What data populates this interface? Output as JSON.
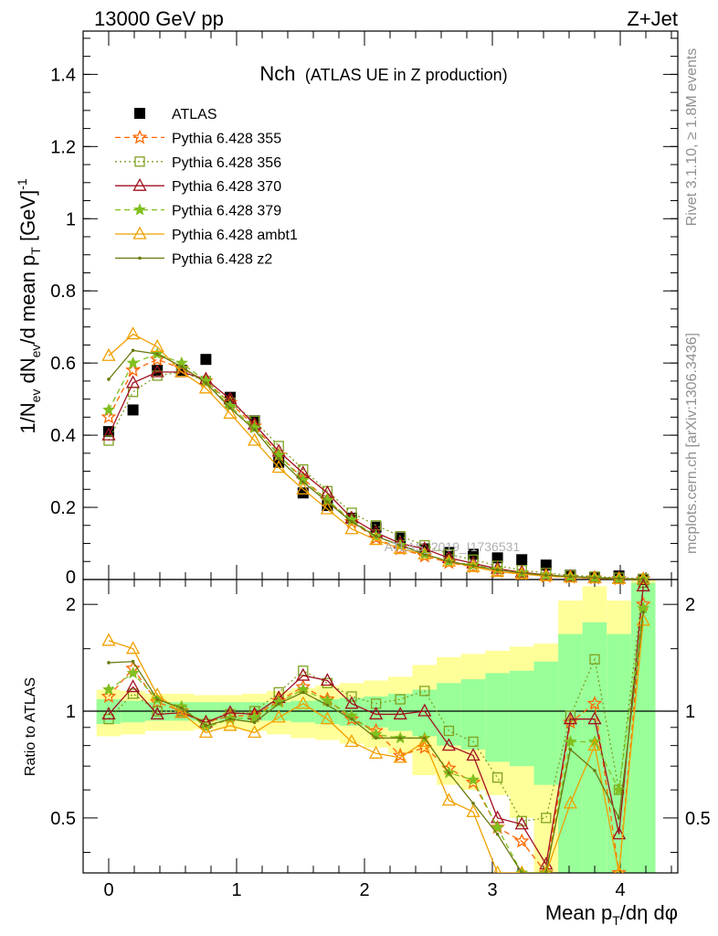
{
  "header": {
    "energy": "13000 GeV pp",
    "process": "Z+Jet",
    "rivet": "Rivet 3.1.10, ≥ 1.8M events",
    "site": "mcplots.cern.ch [arXiv:1306.3436]",
    "watermark": "ATLAS_2019_I1736531"
  },
  "chart_data": [
    {
      "type": "scatter",
      "title": "Nch",
      "subtitle": "(ATLAS UE in Z production)",
      "xlabel": "Mean p_T/dη dφ",
      "ylabel": "1/N_ev dN_ev/d mean p_T [GeV]^-1",
      "xlim": [
        -0.2,
        4.45
      ],
      "ylim": [
        0,
        1.52
      ],
      "yticks": [
        0.2,
        0.4,
        0.6,
        0.8,
        1,
        1.2,
        1.4
      ],
      "ytick_labels": [
        "0.2",
        "0.4",
        "0.6",
        "0.8",
        "1",
        "1.2",
        "1.4"
      ],
      "x": [
        0.0,
        0.19,
        0.38,
        0.57,
        0.76,
        0.95,
        1.14,
        1.33,
        1.52,
        1.71,
        1.9,
        2.09,
        2.28,
        2.47,
        2.66,
        2.85,
        3.04,
        3.23,
        3.42,
        3.61,
        3.8,
        3.99,
        4.18
      ],
      "series": [
        {
          "name": "ATLAS",
          "color": "#000000",
          "marker": "square-filled",
          "line": "none",
          "values": [
            0.41,
            0.47,
            0.58,
            0.58,
            0.61,
            0.505,
            0.44,
            0.325,
            0.24,
            0.205,
            0.17,
            0.145,
            0.115,
            0.085,
            0.075,
            0.07,
            0.06,
            0.055,
            0.04,
            0.012,
            0.006,
            0.01,
            0.0
          ]
        },
        {
          "name": "Pythia 6.428 355",
          "color": "#ff6600",
          "marker": "star-open",
          "line": "dashed",
          "values": [
            0.45,
            0.58,
            0.61,
            0.585,
            0.55,
            0.49,
            0.425,
            0.345,
            0.28,
            0.22,
            0.16,
            0.115,
            0.085,
            0.065,
            0.047,
            0.035,
            0.022,
            0.016,
            0.009,
            0.006,
            0.004,
            0.002,
            0.001
          ]
        },
        {
          "name": "Pythia 6.428 356",
          "color": "#7fa020",
          "marker": "square-open",
          "line": "dotted",
          "values": [
            0.385,
            0.52,
            0.565,
            0.575,
            0.55,
            0.49,
            0.44,
            0.37,
            0.305,
            0.245,
            0.185,
            0.15,
            0.12,
            0.095,
            0.07,
            0.055,
            0.038,
            0.026,
            0.018,
            0.012,
            0.008,
            0.005,
            0.002
          ]
        },
        {
          "name": "Pythia 6.428 370",
          "color": "#a01020",
          "marker": "triangle-open",
          "line": "solid",
          "values": [
            0.4,
            0.545,
            0.575,
            0.575,
            0.555,
            0.5,
            0.43,
            0.355,
            0.295,
            0.24,
            0.17,
            0.13,
            0.1,
            0.085,
            0.06,
            0.045,
            0.03,
            0.02,
            0.013,
            0.008,
            0.005,
            0.003,
            0.001
          ]
        },
        {
          "name": "Pythia 6.428 379",
          "color": "#80c020",
          "marker": "star-filled",
          "line": "dashed",
          "values": [
            0.47,
            0.6,
            0.625,
            0.6,
            0.55,
            0.48,
            0.42,
            0.345,
            0.275,
            0.22,
            0.165,
            0.12,
            0.095,
            0.07,
            0.05,
            0.04,
            0.028,
            0.018,
            0.012,
            0.008,
            0.005,
            0.003,
            0.001
          ]
        },
        {
          "name": "Pythia 6.428 ambt1",
          "color": "#f0a000",
          "marker": "triangle-open",
          "line": "solid",
          "values": [
            0.62,
            0.68,
            0.645,
            0.575,
            0.53,
            0.46,
            0.385,
            0.31,
            0.25,
            0.195,
            0.14,
            0.11,
            0.085,
            0.07,
            0.05,
            0.035,
            0.022,
            0.015,
            0.01,
            0.006,
            0.004,
            0.002,
            0.001
          ]
        },
        {
          "name": "Pythia 6.428 z2",
          "color": "#6b7a10",
          "marker": "dot",
          "line": "solid",
          "values": [
            0.555,
            0.635,
            0.625,
            0.59,
            0.545,
            0.475,
            0.415,
            0.335,
            0.27,
            0.215,
            0.16,
            0.12,
            0.095,
            0.07,
            0.05,
            0.038,
            0.027,
            0.018,
            0.012,
            0.008,
            0.005,
            0.003,
            0.001
          ]
        }
      ]
    },
    {
      "type": "line",
      "ylabel": "Ratio to ATLAS",
      "xlabel": "Mean p_T/dη dφ",
      "xlim": [
        -0.2,
        4.45
      ],
      "ylim": [
        0.35,
        2.35
      ],
      "xticks": [
        0,
        1,
        2,
        3,
        4
      ],
      "xtick_labels": [
        "0",
        "1",
        "2",
        "3",
        "4"
      ],
      "yticks": [
        0.5,
        1,
        2
      ],
      "ytick_labels": [
        "0.5",
        "1",
        "2"
      ],
      "reference_line": 1,
      "band_inner_lo": [
        0.92,
        0.93,
        0.94,
        0.94,
        0.94,
        0.94,
        0.94,
        0.94,
        0.93,
        0.92,
        0.91,
        0.9,
        0.88,
        0.85,
        0.8,
        0.78,
        0.72,
        0.7,
        0.62,
        0.35,
        0.35,
        0.35,
        0.35
      ],
      "band_inner_hi": [
        1.08,
        1.07,
        1.06,
        1.06,
        1.06,
        1.06,
        1.06,
        1.06,
        1.07,
        1.08,
        1.09,
        1.1,
        1.12,
        1.15,
        1.2,
        1.23,
        1.28,
        1.3,
        1.38,
        1.65,
        1.78,
        1.65,
        2.3
      ],
      "band_outer_lo": [
        0.85,
        0.86,
        0.88,
        0.88,
        0.89,
        0.89,
        0.88,
        0.86,
        0.84,
        0.83,
        0.81,
        0.79,
        0.76,
        0.66,
        0.62,
        0.6,
        0.58,
        0.5,
        0.35,
        0.35,
        0.35,
        0.35,
        0.35
      ],
      "band_outer_hi": [
        1.15,
        1.14,
        1.12,
        1.12,
        1.11,
        1.11,
        1.12,
        1.14,
        1.16,
        1.18,
        1.2,
        1.22,
        1.25,
        1.35,
        1.42,
        1.45,
        1.48,
        1.52,
        1.55,
        2.05,
        2.25,
        2.05,
        2.35
      ],
      "series": [
        {
          "name": "Pythia 6.428 355",
          "values": [
            1.1,
            1.32,
            1.06,
            1.0,
            0.93,
            0.97,
            0.97,
            1.07,
            1.17,
            1.08,
            0.95,
            0.88,
            0.75,
            0.79,
            0.69,
            0.63,
            0.47,
            0.43,
            0.35,
            0.93,
            1.05,
            0.35,
            2.0
          ]
        },
        {
          "name": "Pythia 6.428 356",
          "values": [
            0.95,
            1.12,
            1.0,
            1.0,
            0.92,
            0.98,
            1.0,
            1.13,
            1.3,
            1.2,
            1.1,
            1.05,
            1.08,
            1.14,
            0.88,
            0.82,
            0.65,
            0.49,
            0.5,
            0.97,
            1.4,
            0.6,
            2.3
          ]
        },
        {
          "name": "Pythia 6.428 370",
          "values": [
            0.98,
            1.17,
            0.98,
            0.99,
            0.93,
            0.99,
            0.98,
            1.09,
            1.26,
            1.22,
            1.05,
            0.98,
            0.98,
            1.0,
            0.8,
            0.75,
            0.5,
            0.48,
            0.37,
            0.95,
            0.95,
            0.45,
            2.25
          ]
        },
        {
          "name": "Pythia 6.428 379",
          "values": [
            1.15,
            1.28,
            1.08,
            1.03,
            0.9,
            0.95,
            0.96,
            1.06,
            1.15,
            1.07,
            0.97,
            0.86,
            0.84,
            0.84,
            0.67,
            0.64,
            0.47,
            0.33,
            0.3,
            0.82,
            0.82,
            0.6,
            1.95
          ]
        },
        {
          "name": "Pythia 6.428 ambt1",
          "values": [
            1.58,
            1.5,
            1.11,
            0.99,
            0.87,
            0.91,
            0.87,
            0.96,
            1.05,
            0.95,
            0.82,
            0.76,
            0.74,
            0.82,
            0.56,
            0.52,
            0.35,
            0.3,
            0.25,
            0.55,
            0.8,
            0.35,
            1.8
          ]
        },
        {
          "name": "Pythia 6.428 z2",
          "values": [
            1.37,
            1.38,
            1.08,
            1.02,
            0.91,
            0.95,
            0.93,
            1.05,
            1.13,
            1.04,
            0.95,
            0.84,
            0.84,
            0.84,
            0.67,
            0.55,
            0.45,
            0.33,
            0.3,
            0.78,
            0.68,
            0.5,
            1.9
          ]
        }
      ]
    }
  ]
}
